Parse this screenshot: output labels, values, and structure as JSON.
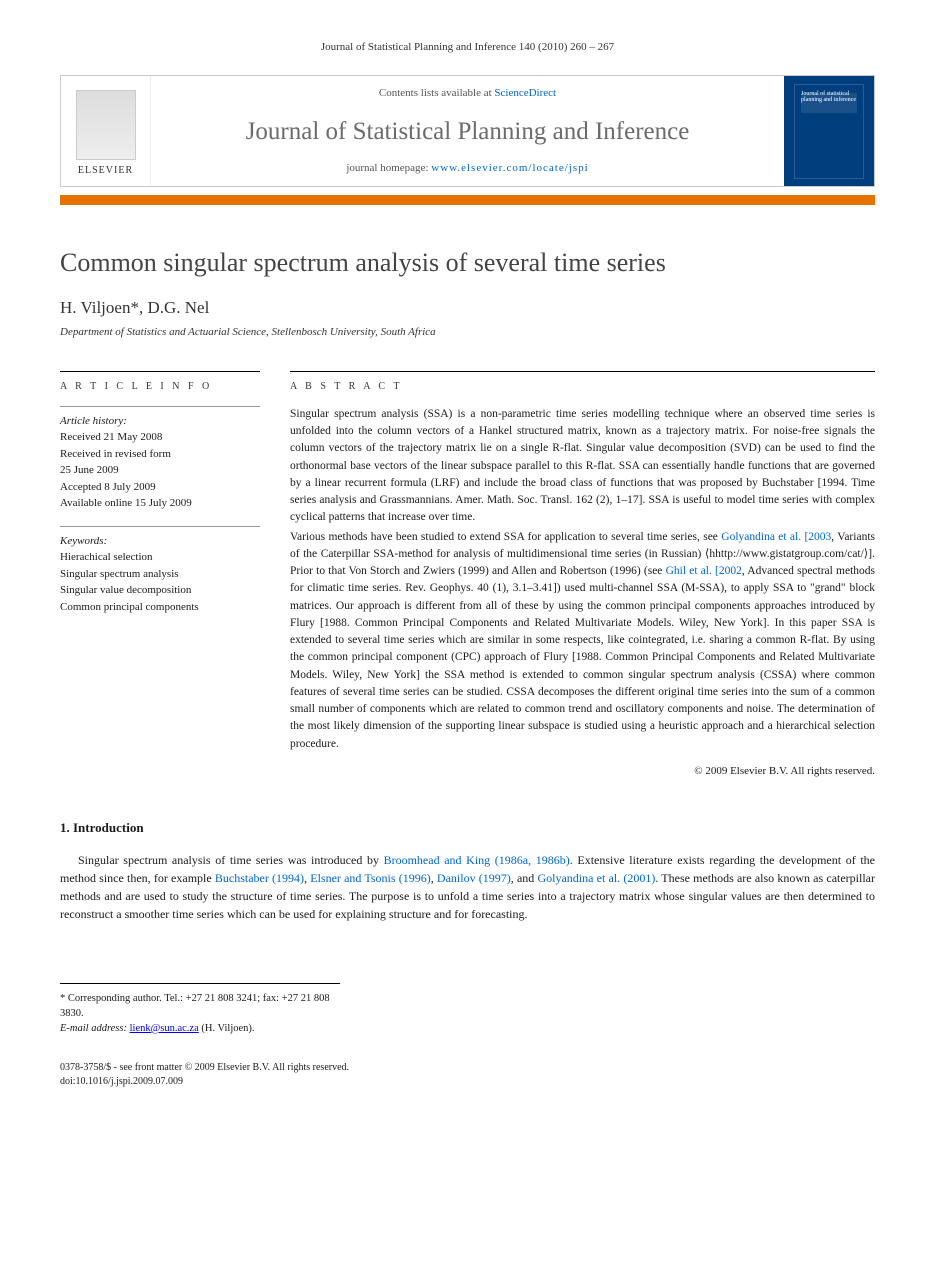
{
  "page_header": "Journal of Statistical Planning and Inference 140 (2010) 260 – 267",
  "banner": {
    "contents_prefix": "Contents lists available at ",
    "contents_link": "ScienceDirect",
    "journal_name": "Journal of Statistical Planning and Inference",
    "homepage_prefix": "journal homepage: ",
    "homepage_url": "www.elsevier.com/locate/jspi",
    "publisher_label": "ELSEVIER",
    "cover_mini_title": "Journal of statistical planning and inference"
  },
  "colors": {
    "orange_bar": "#e57200",
    "banner_blue": "#003e7e",
    "link": "#0066cc",
    "title_gray": "#6b6b6b"
  },
  "article": {
    "title": "Common singular spectrum analysis of several time series",
    "authors": "H. Viljoen*, D.G. Nel",
    "affiliation": "Department of Statistics and Actuarial Science, Stellenbosch University, South Africa"
  },
  "info": {
    "heading": "A R T I C L E   I N F O",
    "history_label": "Article history:",
    "history_lines": [
      "Received 21 May 2008",
      "Received in revised form",
      "25 June 2009",
      "Accepted 8 July 2009",
      "Available online 15 July 2009"
    ],
    "keywords_label": "Keywords:",
    "keywords": [
      "Hierachical selection",
      "Singular spectrum analysis",
      "Singular value decomposition",
      "Common principal components"
    ]
  },
  "abstract": {
    "heading": "A B S T R A C T",
    "p1": "Singular spectrum analysis (SSA) is a non-parametric time series modelling technique where an observed time series is unfolded into the column vectors of a Hankel structured matrix, known as a trajectory matrix. For noise-free signals the column vectors of the trajectory matrix lie on a single R-flat. Singular value decomposition (SVD) can be used to find the orthonormal base vectors of the linear subspace parallel to this R-flat. SSA can essentially handle functions that are governed by a linear recurrent formula (LRF) and include the broad class of functions that was proposed by Buchstaber [1994. Time series analysis and Grassmannians. Amer. Math. Soc. Transl. 162 (2), 1–17]. SSA is useful to model time series with complex cyclical patterns that increase over time.",
    "p2_pre": "Various methods have been studied to extend SSA for application to several time series, see ",
    "p2_link1": "Golyandina et al. [2003",
    "p2_mid1": ", Variants of the Caterpillar SSA-method for analysis of multidimensional time series (in Russian) ⟨hhttp://www.gistatgroup.com/cat/⟩]. Prior to that Von Storch and Zwiers (1999) and Allen and Robertson (1996) (see ",
    "p2_link2": "Ghil et al. [2002",
    "p2_mid2": ", Advanced spectral methods for climatic time series. Rev. Geophys. 40 (1), 3.1–3.41]) used multi-channel SSA (M-SSA), to apply SSA to \"grand\" block matrices. Our approach is different from all of these by using the common principal components approaches introduced by Flury [1988. Common Principal Components and Related Multivariate Models. Wiley, New York]. In this paper SSA is extended to several time series which are similar in some respects, like cointegrated, i.e. sharing a common R-flat. By using the common principal component (CPC) approach of Flury [1988. Common Principal Components and Related Multivariate Models. Wiley, New York] the SSA method is extended to common singular spectrum analysis (CSSA) where common features of several time series can be studied. CSSA decomposes the different original time series into the sum of a common small number of components which are related to common trend and oscillatory components and noise. The determination of the most likely dimension of the supporting linear subspace is studied using a heuristic approach and a hierarchical selection procedure.",
    "copyright": "© 2009 Elsevier B.V. All rights reserved."
  },
  "intro": {
    "heading": "1.  Introduction",
    "text_pre": "Singular spectrum analysis of time series was introduced by ",
    "link1": "Broomhead and King (1986a, 1986b)",
    "text_mid1": ". Extensive literature exists regarding the development of the method since then, for example ",
    "link2": "Buchstaber (1994)",
    "text_mid2": ", ",
    "link3": "Elsner and Tsonis (1996)",
    "text_mid3": ", ",
    "link4": "Danilov (1997)",
    "text_mid4": ", and ",
    "link5": "Golyandina et al. (2001)",
    "text_post": ". These methods are also known as caterpillar methods and are used to study the structure of time series. The purpose is to unfold a time series into a trajectory matrix whose singular values are then determined to reconstruct a smoother time series which can be used for explaining structure and for forecasting."
  },
  "footnotes": {
    "corr": "* Corresponding author. Tel.: +27 21 808 3241; fax: +27 21 808 3830.",
    "email_label": "E-mail address:",
    "email": "lienk@sun.ac.za",
    "email_who": " (H. Viljoen)."
  },
  "footer": {
    "line1": "0378-3758/$ - see front matter © 2009 Elsevier B.V. All rights reserved.",
    "line2": "doi:10.1016/j.jspi.2009.07.009"
  }
}
